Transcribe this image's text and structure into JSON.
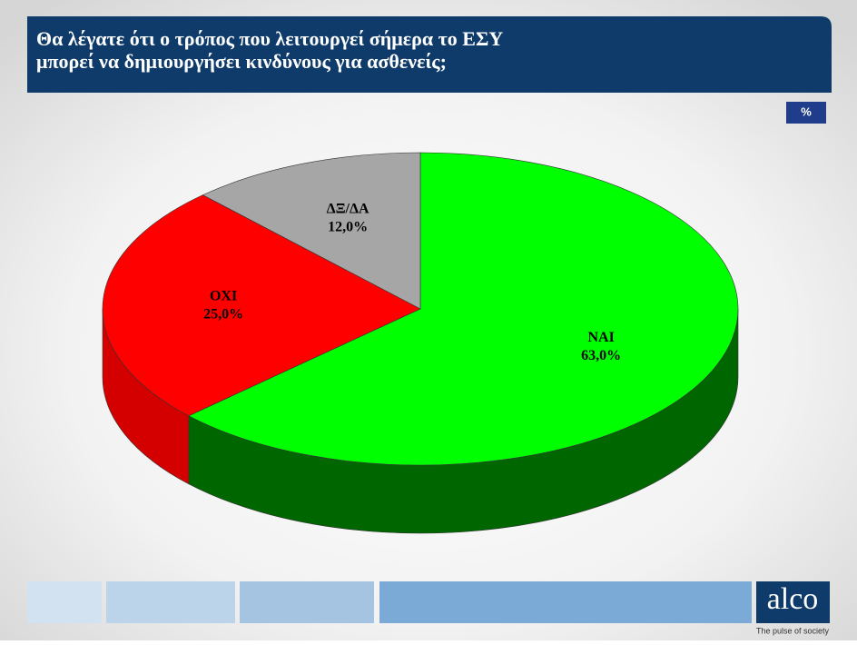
{
  "chart_data": {
    "type": "pie",
    "title_lines": [
      "Θα λέγατε ότι ο τρόπος που λειτουργεί σήμερα το ΕΣΥ",
      "μπορεί να δημιουργήσει κινδύνους  για ασθενείς;"
    ],
    "unit_label": "%",
    "categories": [
      "ΝΑΙ",
      "ΟΧΙ",
      "ΔΞ/ΔΑ"
    ],
    "values": [
      63,
      25,
      12
    ],
    "value_labels": [
      "63,0%",
      "25,0%",
      "12,0%"
    ],
    "colors": [
      "#00ff00",
      "#ff0000",
      "#a6a6a6"
    ],
    "side_colors": [
      "#006600",
      "#d40000",
      "#7f7f7f"
    ]
  },
  "brand": {
    "name": "alco",
    "tagline": "The pulse of society"
  }
}
